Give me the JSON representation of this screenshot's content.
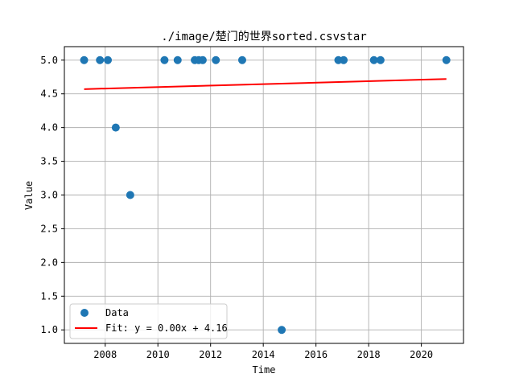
{
  "chart_data": {
    "type": "scatter",
    "title": "./image/楚门的世界sorted.csvstar",
    "xlabel": "Time",
    "ylabel": "Value",
    "xlim": [
      2006.45,
      2021.6
    ],
    "ylim": [
      0.8,
      5.2
    ],
    "xticks": [
      2008,
      2010,
      2012,
      2014,
      2016,
      2018,
      2020
    ],
    "yticks": [
      1.0,
      1.5,
      2.0,
      2.5,
      3.0,
      3.5,
      4.0,
      4.5,
      5.0
    ],
    "grid": true,
    "legend_position": "lower-left",
    "series": [
      {
        "name": "Data",
        "kind": "scatter",
        "color": "#1f77b4",
        "points": [
          {
            "x": 2007.2,
            "y": 5.0
          },
          {
            "x": 2007.8,
            "y": 5.0
          },
          {
            "x": 2008.1,
            "y": 5.0
          },
          {
            "x": 2008.4,
            "y": 4.0
          },
          {
            "x": 2008.95,
            "y": 3.0
          },
          {
            "x": 2010.25,
            "y": 5.0
          },
          {
            "x": 2010.75,
            "y": 5.0
          },
          {
            "x": 2011.4,
            "y": 5.0
          },
          {
            "x": 2011.55,
            "y": 5.0
          },
          {
            "x": 2011.7,
            "y": 5.0
          },
          {
            "x": 2012.2,
            "y": 5.0
          },
          {
            "x": 2013.2,
            "y": 5.0
          },
          {
            "x": 2014.7,
            "y": 1.0
          },
          {
            "x": 2016.85,
            "y": 5.0
          },
          {
            "x": 2017.05,
            "y": 5.0
          },
          {
            "x": 2018.2,
            "y": 5.0
          },
          {
            "x": 2018.45,
            "y": 5.0
          },
          {
            "x": 2020.95,
            "y": 5.0
          }
        ]
      },
      {
        "name": "Fit: y = 0.00x + 4.16",
        "kind": "line",
        "color": "#ff0000",
        "points": [
          {
            "x": 2007.2,
            "y": 4.57
          },
          {
            "x": 2020.95,
            "y": 4.72
          }
        ]
      }
    ]
  }
}
